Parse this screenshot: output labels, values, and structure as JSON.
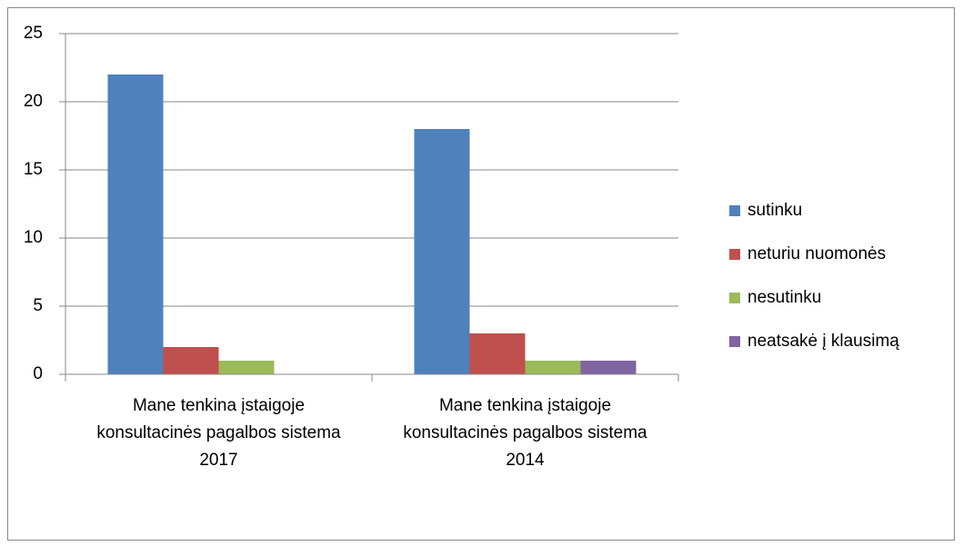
{
  "chart_data": {
    "type": "bar",
    "categories": [
      "Mane tenkina įstaigoje konsultacinės pagalbos sistema 2017",
      "Mane tenkina įstaigoje konsultacinės pagalbos sistema 2014"
    ],
    "series": [
      {
        "name": "sutinku",
        "color": "#4f81bd",
        "values": [
          22,
          18
        ]
      },
      {
        "name": "neturiu nuomonės",
        "color": "#c0504d",
        "values": [
          2,
          3
        ]
      },
      {
        "name": "nesutinku",
        "color": "#9bbb59",
        "values": [
          1,
          1
        ]
      },
      {
        "name": "neatsakė į klausimą",
        "color": "#8064a2",
        "values": [
          0,
          1
        ]
      }
    ],
    "ylim": [
      0,
      25
    ],
    "yticks": [
      0,
      5,
      10,
      15,
      20,
      25
    ],
    "grid": true,
    "legend": "right"
  }
}
